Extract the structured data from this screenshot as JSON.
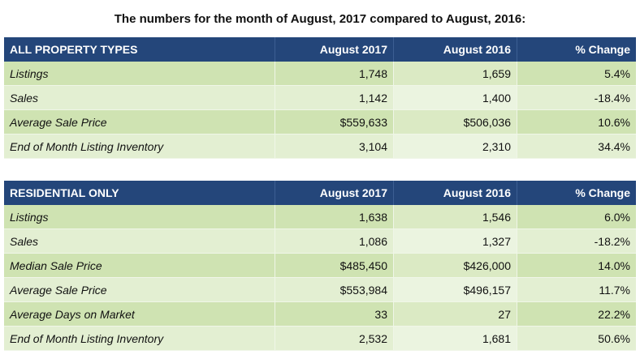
{
  "title": "The numbers for the month of August, 2017 compared to August, 2016:",
  "colors": {
    "header": "#24467a",
    "row_odd": "#cfe3b2",
    "row_even": "#e3efd2"
  },
  "tables": [
    {
      "headers": [
        "ALL PROPERTY TYPES",
        "August 2017",
        "August 2016",
        "% Change"
      ],
      "rows": [
        [
          "Listings",
          "1,748",
          "1,659",
          "5.4%"
        ],
        [
          "Sales",
          "1,142",
          "1,400",
          "-18.4%"
        ],
        [
          "Average Sale Price",
          "$559,633",
          "$506,036",
          "10.6%"
        ],
        [
          "End of Month Listing Inventory",
          "3,104",
          "2,310",
          "34.4%"
        ]
      ]
    },
    {
      "headers": [
        "RESIDENTIAL ONLY",
        "August 2017",
        "August 2016",
        "% Change"
      ],
      "rows": [
        [
          "Listings",
          "1,638",
          "1,546",
          "6.0%"
        ],
        [
          "Sales",
          "1,086",
          "1,327",
          "-18.2%"
        ],
        [
          "Median Sale Price",
          "$485,450",
          "$426,000",
          "14.0%"
        ],
        [
          "Average Sale Price",
          "$553,984",
          "$496,157",
          "11.7%"
        ],
        [
          "Average Days on Market",
          "33",
          "27",
          "22.2%"
        ],
        [
          "End of Month Listing Inventory",
          "2,532",
          "1,681",
          "50.6%"
        ]
      ]
    }
  ]
}
